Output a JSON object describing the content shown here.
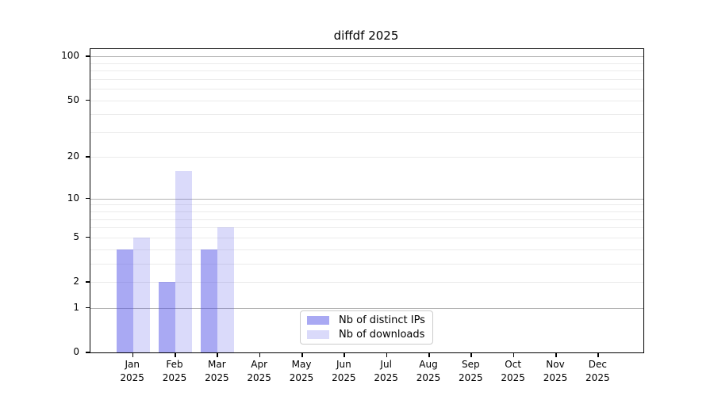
{
  "title": "diffdf 2025",
  "chart_data": {
    "type": "bar",
    "title": "diffdf 2025",
    "categories": [
      "Jan 2025",
      "Feb 2025",
      "Mar 2025",
      "Apr 2025",
      "May 2025",
      "Jun 2025",
      "Jul 2025",
      "Aug 2025",
      "Sep 2025",
      "Oct 2025",
      "Nov 2025",
      "Dec 2025"
    ],
    "category_month_labels": [
      "Jan",
      "Feb",
      "Mar",
      "Apr",
      "May",
      "Jun",
      "Jul",
      "Aug",
      "Sep",
      "Oct",
      "Nov",
      "Dec"
    ],
    "category_year_label": "2025",
    "series": [
      {
        "name": "Nb of distinct IPs",
        "color": "rgba(80,80,230,0.49)",
        "values": [
          4,
          2,
          4,
          0,
          0,
          0,
          0,
          0,
          0,
          0,
          0,
          0
        ]
      },
      {
        "name": "Nb of downloads",
        "color": "rgba(80,80,230,0.21)",
        "values": [
          5,
          16,
          6,
          0,
          0,
          0,
          0,
          0,
          0,
          0,
          0,
          0
        ]
      }
    ],
    "xlabel": "",
    "ylabel": "",
    "scale": "log1p",
    "ylim": [
      0,
      112
    ],
    "yticks": [
      0,
      1,
      2,
      5,
      10,
      20,
      50,
      100
    ],
    "ytick_labels": [
      "0",
      "1",
      "2",
      "5",
      "10",
      "20",
      "50",
      "100"
    ],
    "grid_major": [
      1,
      10,
      100
    ],
    "grid_minor": [
      2,
      3,
      4,
      5,
      6,
      7,
      8,
      9,
      20,
      30,
      40,
      50,
      60,
      70,
      80,
      90
    ],
    "grid": "horizontal",
    "legend_position": "lower-center-inside",
    "colors": {
      "grid_major": "#b3b3b3",
      "grid_minor": "#ebebeb",
      "spine": "#000000",
      "background": "#ffffff"
    }
  }
}
